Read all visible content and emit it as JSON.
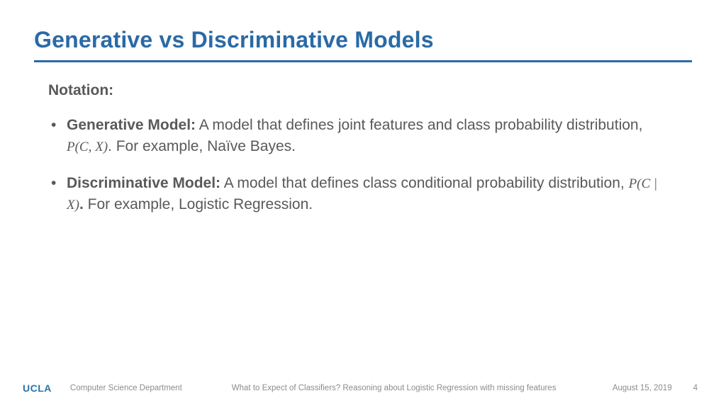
{
  "title": "Generative vs Discriminative Models",
  "subheading": "Notation:",
  "bullets": [
    {
      "label": "Generative Model:",
      "text_before_math": " A model that defines joint features and class probability distribution, ",
      "math": "P(C, X)",
      "text_after_math": ". For example, Naïve Bayes."
    },
    {
      "label": "Discriminative Model:",
      "text_before_math": " A model that defines class conditional probability distribution, ",
      "math": "P(C | X)",
      "text_after_math": ". For example, Logistic Regression."
    }
  ],
  "footer": {
    "logo": "UCLA",
    "department": "Computer Science Department",
    "talk_title": "What to Expect of Classifiers? Reasoning about Logistic Regression with missing features",
    "date": "August 15, 2019",
    "page": "4"
  },
  "colors": {
    "title": "#2a6aa6",
    "rule": "#2a6aa6",
    "body_text": "#595959",
    "footer_text": "#8c8c8c",
    "logo": "#2774ae",
    "background": "#ffffff"
  }
}
